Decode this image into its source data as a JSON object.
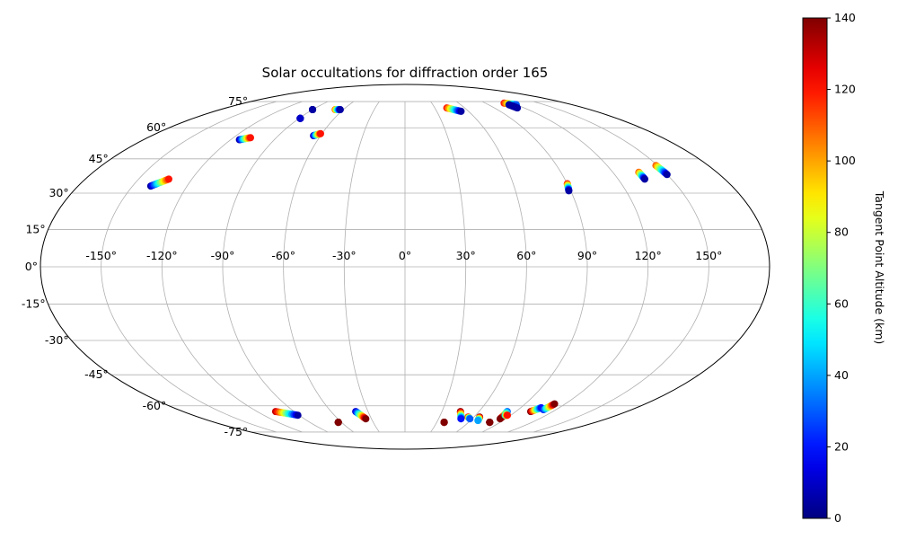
{
  "chart_data": {
    "type": "scatter",
    "projection": "mollweide",
    "title": "Solar occultations for diffraction order 165",
    "xlabel": "",
    "ylabel": "",
    "x_tick_labels": [
      "-150°",
      "-120°",
      "-90°",
      "-60°",
      "-30°",
      "0°",
      "30°",
      "60°",
      "90°",
      "120°",
      "150°"
    ],
    "y_tick_labels": [
      "-75°",
      "-60°",
      "-45°",
      "-30°",
      "-15°",
      "0°",
      "15°",
      "30°",
      "45°",
      "60°",
      "75°"
    ],
    "xlim": [
      -180,
      180
    ],
    "ylim": [
      -90,
      90
    ],
    "grid": true,
    "colormap": "jet",
    "colorbar": {
      "label": "Tangent Point Altitude (km)",
      "range": [
        0,
        140
      ],
      "tick_labels": [
        "0",
        "20",
        "40",
        "60",
        "80",
        "100",
        "120",
        "140"
      ]
    },
    "tracks": [
      {
        "lon_start": -90,
        "lat_start": 70,
        "lon_end": -90,
        "lat_end": 70,
        "alt_start": 5,
        "alt_end": 5
      },
      {
        "lon_start": -89,
        "lat_start": 65,
        "lon_end": -89,
        "lat_end": 65,
        "alt_start": 10,
        "alt_end": 10
      },
      {
        "lon_start": -68,
        "lat_start": 70,
        "lon_end": -63,
        "lat_end": 70,
        "alt_start": 110,
        "alt_end": 5
      },
      {
        "lon_start": -114,
        "lat_start": 54,
        "lon_end": -108,
        "lat_end": 55,
        "alt_start": 5,
        "alt_end": 120
      },
      {
        "lon_start": -65,
        "lat_start": 56,
        "lon_end": -61,
        "lat_end": 57,
        "alt_start": 5,
        "alt_end": 120
      },
      {
        "lon_start": -140,
        "lat_start": 33,
        "lon_end": -133,
        "lat_end": 36,
        "alt_start": 5,
        "alt_end": 120
      },
      {
        "lon_start": 42,
        "lat_start": 71,
        "lon_end": 53,
        "lat_end": 69,
        "alt_start": 120,
        "alt_end": 5
      },
      {
        "lon_start": 111,
        "lat_start": 74,
        "lon_end": 120,
        "lat_end": 73,
        "alt_start": 120,
        "alt_end": 30
      },
      {
        "lon_start": 112,
        "lat_start": 73,
        "lon_end": 113,
        "lat_end": 71,
        "alt_start": 5,
        "alt_end": 5
      },
      {
        "lon_start": 90,
        "lat_start": 34,
        "lon_end": 89,
        "lat_end": 31,
        "alt_start": 120,
        "alt_end": 5
      },
      {
        "lon_start": 135,
        "lat_start": 39,
        "lon_end": 135,
        "lat_end": 36,
        "alt_start": 110,
        "alt_end": 5
      },
      {
        "lon_start": 149,
        "lat_start": 42,
        "lon_end": 150,
        "lat_end": 38,
        "alt_start": 110,
        "alt_end": 5
      },
      {
        "lon_start": -105,
        "lat_start": -63,
        "lon_end": -91,
        "lat_end": -65,
        "alt_start": 130,
        "alt_end": 5
      },
      {
        "lon_start": -63,
        "lat_start": -69,
        "lon_end": -63,
        "lat_end": -69,
        "alt_start": 140,
        "alt_end": 140
      },
      {
        "lon_start": -40,
        "lat_start": -63,
        "lon_end": -35,
        "lat_end": -67,
        "alt_start": 10,
        "alt_end": 140
      },
      {
        "lon_start": 37,
        "lat_start": -69,
        "lon_end": 37,
        "lat_end": -69,
        "alt_start": 140,
        "alt_end": 140
      },
      {
        "lon_start": 45,
        "lat_start": -63,
        "lon_end": 50,
        "lat_end": -67,
        "alt_start": 140,
        "alt_end": 20
      },
      {
        "lon_start": 55,
        "lat_start": -66,
        "lon_end": 58,
        "lat_end": -67,
        "alt_start": 130,
        "alt_end": 30
      },
      {
        "lon_start": 65,
        "lat_start": -66,
        "lon_end": 67,
        "lat_end": -68,
        "alt_start": 140,
        "alt_end": 40
      },
      {
        "lon_start": 80,
        "lat_start": -69,
        "lon_end": 80,
        "lat_end": -69,
        "alt_start": 140,
        "alt_end": 140
      },
      {
        "lon_start": 83,
        "lat_start": -63,
        "lon_end": 85,
        "lat_end": -67,
        "alt_start": 30,
        "alt_end": 140
      },
      {
        "lon_start": 85,
        "lat_start": -65,
        "lon_end": 87,
        "lat_end": -65,
        "alt_start": 40,
        "alt_end": 120
      },
      {
        "lon_start": 102,
        "lat_start": -63,
        "lon_end": 106,
        "lat_end": -61,
        "alt_start": 140,
        "alt_end": 20
      },
      {
        "lon_start": 110,
        "lat_start": -62,
        "lon_end": 112,
        "lat_end": -59,
        "alt_start": 20,
        "alt_end": 140
      }
    ]
  }
}
